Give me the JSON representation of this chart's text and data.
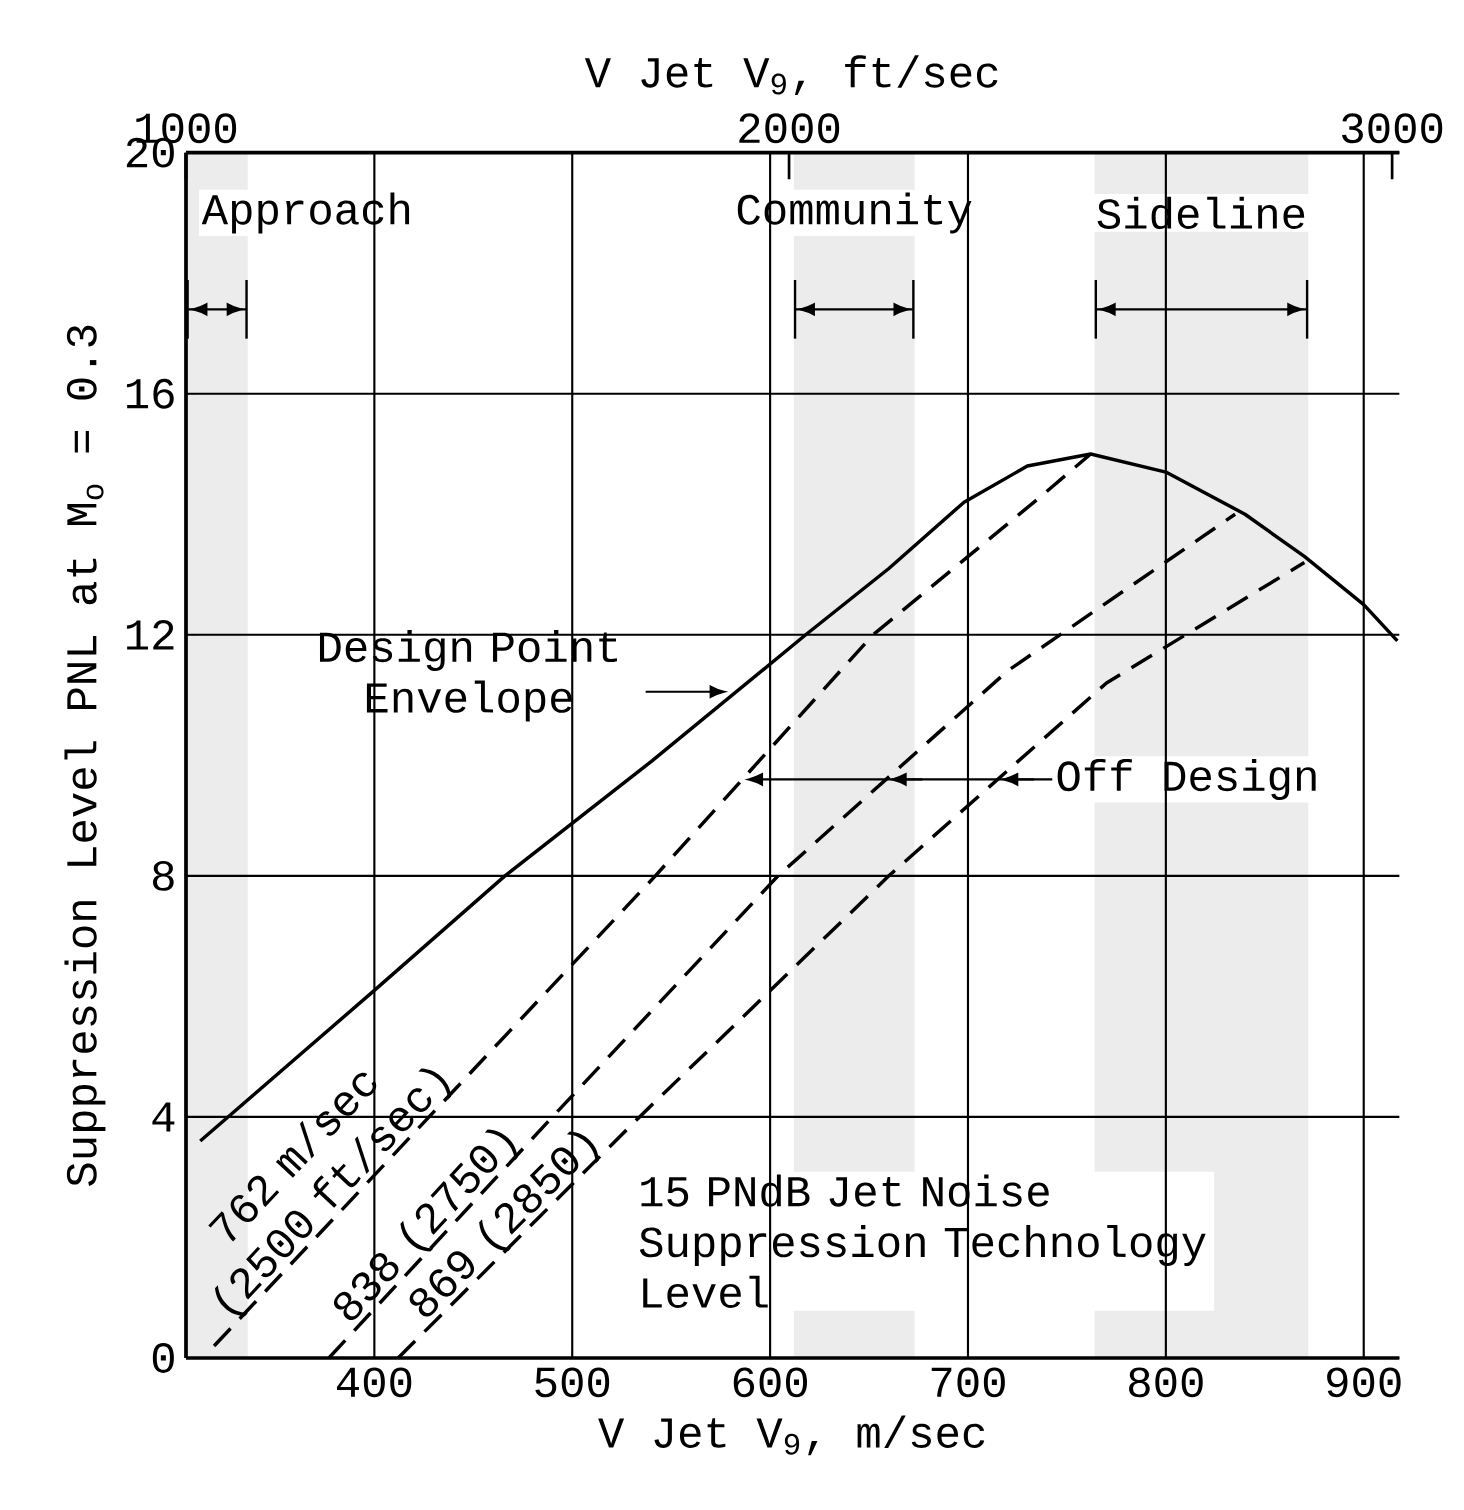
{
  "chart_data": {
    "type": "line",
    "xlabel": "V Jet V$_{9}$, m/sec",
    "x2label": "V Jet V$_{9}$, ft/sec",
    "ylabel": "Suppression Level PNL at M$_{o}$ = 0.3",
    "xlim": [
      304.8,
      918
    ],
    "xticks": [
      400,
      500,
      600,
      700,
      800,
      900
    ],
    "x2lim": [
      1000,
      3012
    ],
    "x2ticks": [
      1000,
      2000,
      3000
    ],
    "ylim": [
      0,
      20
    ],
    "yticks": [
      0,
      4,
      8,
      12,
      16,
      20
    ],
    "grid": true,
    "marker": "none",
    "series": [
      {
        "name": "Design Point Envelope",
        "color": "#000000",
        "line_style": "solid",
        "x": [
          312,
          400,
          466,
          540,
          618,
          660,
          698,
          730,
          762,
          800,
          840,
          870,
          900,
          917
        ],
        "values": [
          3.6,
          6.1,
          8.0,
          9.9,
          12.0,
          13.1,
          14.2,
          14.8,
          15.0,
          14.7,
          14.0,
          13.3,
          12.5,
          11.9
        ]
      },
      {
        "name": "762 m/sec (2500 ft/sec)",
        "color": "#000000",
        "line_style": "dashed",
        "x": [
          319,
          542,
          652,
          737,
          762
        ],
        "values": [
          0.2,
          8.0,
          12.0,
          14.3,
          15.0
        ]
      },
      {
        "name": "838 (2750)",
        "color": "#000000",
        "line_style": "dashed",
        "x": [
          377,
          490,
          604,
          720,
          835
        ],
        "values": [
          0,
          4,
          8,
          11.4,
          14.0
        ]
      },
      {
        "name": "869 (2850)",
        "color": "#000000",
        "line_style": "dashed",
        "x": [
          412,
          534,
          660,
          770,
          870
        ],
        "values": [
          0,
          4,
          8,
          11.2,
          13.2
        ]
      }
    ],
    "bands": [
      {
        "axis": "x",
        "from": 305,
        "to": 336,
        "label": "Approach",
        "color": "#ececec"
      },
      {
        "axis": "x",
        "from": 612,
        "to": 673,
        "label": "Community",
        "color": "#ececec"
      },
      {
        "axis": "x",
        "from": 764,
        "to": 872,
        "label": "Sideline",
        "color": "#ececec"
      }
    ],
    "annotations": [
      "Off Design",
      "15 PNdB Jet Noise Suppression Technology Level"
    ]
  }
}
